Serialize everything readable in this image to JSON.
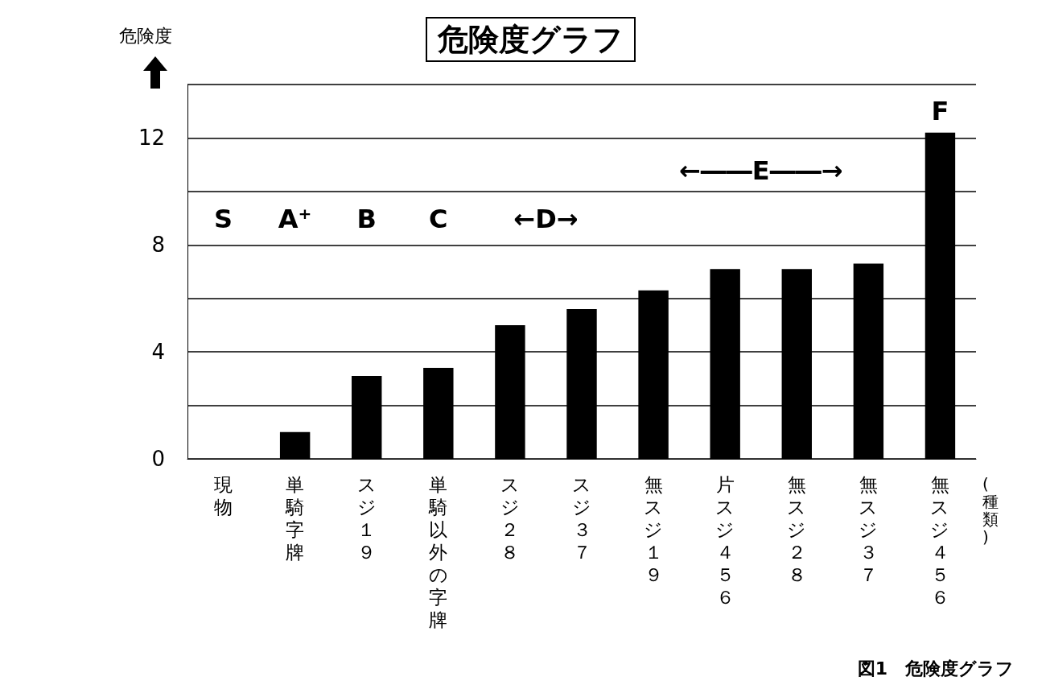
{
  "chart_data": {
    "type": "bar",
    "title": "危険度グラフ",
    "ylabel": "危険度",
    "xlabel": "(種類)",
    "categories": [
      "現物",
      "単騎字牌",
      "スジ１９",
      "単騎以外の字牌",
      "スジ２８",
      "スジ３７",
      "無スジ１９",
      "片スジ４５６",
      "無スジ２８",
      "無スジ３７",
      "無スジ４５６"
    ],
    "values": [
      0,
      1.0,
      3.1,
      3.4,
      5.0,
      5.6,
      6.3,
      7.1,
      7.1,
      7.3,
      12.2
    ],
    "color": "#000000",
    "ylim": [
      0,
      14
    ],
    "yticks": [
      0,
      {
        "value": 2,
        "label": null
      },
      4,
      {
        "value": 6,
        "label": null
      },
      8,
      {
        "value": 10,
        "label": null
      },
      12,
      {
        "value": 14,
        "label": null
      }
    ],
    "grid": "y",
    "annotations": [
      "S",
      "A⁺",
      "B",
      "C",
      "←D→",
      "←――E――→",
      "F",
      "図1　危険度グラフ"
    ]
  }
}
